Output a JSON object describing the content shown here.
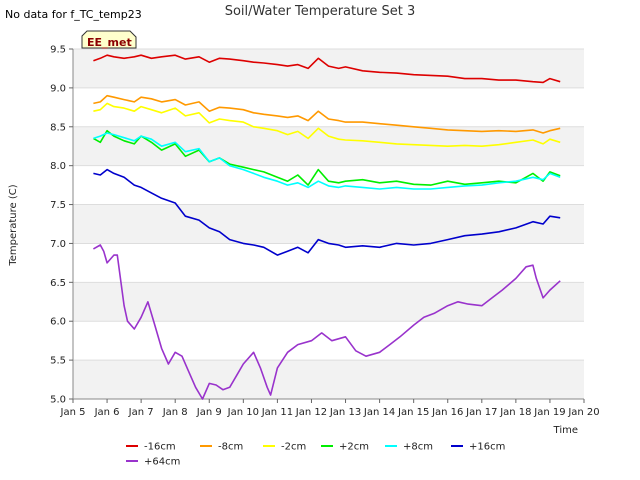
{
  "header": {
    "no_data_note": "No data for f_TC_temp23",
    "title": "Soil/Water Temperature Set 3"
  },
  "badge": {
    "label": "EE_met",
    "fill": "#ffffcc",
    "stroke": "#333333"
  },
  "chart_data": {
    "type": "line",
    "title": "Soil/Water Temperature Set 3",
    "xlabel": "Time",
    "ylabel": "Temperature (C)",
    "ylim": [
      5.0,
      9.5
    ],
    "yticks": [
      5.0,
      5.5,
      6.0,
      6.5,
      7.0,
      7.5,
      8.0,
      8.5,
      9.0,
      9.5
    ],
    "ytick_labels": [
      "5.0",
      "5.5",
      "6.0",
      "6.5",
      "7.0",
      "7.5",
      "8.0",
      "8.5",
      "9.0",
      "9.5"
    ],
    "xlim": [
      5,
      20
    ],
    "xticks": [
      5,
      6,
      7,
      8,
      9,
      10,
      11,
      12,
      13,
      14,
      15,
      16,
      17,
      18,
      19,
      20
    ],
    "xtick_labels": [
      "Jan 5",
      "Jan 6",
      "Jan 7",
      "Jan 8",
      "Jan 9",
      "Jan 10",
      "Jan 11",
      "Jan 12",
      "Jan 13",
      "Jan 14",
      "Jan 15",
      "Jan 16",
      "Jan 17",
      "Jan 18",
      "Jan 19",
      "Jan 20"
    ],
    "grid": "horizontal bands",
    "legend_position": "bottom",
    "series": [
      {
        "name": "-16cm",
        "color": "#dd0000",
        "x": [
          5.6,
          5.8,
          6.0,
          6.2,
          6.5,
          6.8,
          7.0,
          7.3,
          7.6,
          8.0,
          8.3,
          8.7,
          9.0,
          9.3,
          9.6,
          10.0,
          10.3,
          10.6,
          11.0,
          11.3,
          11.6,
          11.9,
          12.2,
          12.5,
          12.8,
          13.0,
          13.5,
          14.0,
          14.5,
          15.0,
          15.5,
          16.0,
          16.5,
          17.0,
          17.5,
          18.0,
          18.5,
          18.8,
          19.0,
          19.3
        ],
        "y": [
          9.35,
          9.38,
          9.42,
          9.4,
          9.38,
          9.4,
          9.42,
          9.38,
          9.4,
          9.42,
          9.37,
          9.4,
          9.33,
          9.38,
          9.37,
          9.35,
          9.33,
          9.32,
          9.3,
          9.28,
          9.3,
          9.25,
          9.38,
          9.28,
          9.25,
          9.27,
          9.22,
          9.2,
          9.19,
          9.17,
          9.16,
          9.15,
          9.12,
          9.12,
          9.1,
          9.1,
          9.08,
          9.07,
          9.12,
          9.08
        ]
      },
      {
        "name": "-8cm",
        "color": "#ff9900",
        "x": [
          5.6,
          5.8,
          6.0,
          6.2,
          6.5,
          6.8,
          7.0,
          7.3,
          7.6,
          8.0,
          8.3,
          8.7,
          9.0,
          9.3,
          9.6,
          10.0,
          10.3,
          10.6,
          11.0,
          11.3,
          11.6,
          11.9,
          12.2,
          12.5,
          12.8,
          13.0,
          13.5,
          14.0,
          14.5,
          15.0,
          15.5,
          16.0,
          16.5,
          17.0,
          17.5,
          18.0,
          18.5,
          18.8,
          19.0,
          19.3
        ],
        "y": [
          8.8,
          8.82,
          8.9,
          8.88,
          8.85,
          8.82,
          8.88,
          8.86,
          8.82,
          8.85,
          8.78,
          8.82,
          8.7,
          8.75,
          8.74,
          8.72,
          8.68,
          8.66,
          8.64,
          8.62,
          8.64,
          8.58,
          8.7,
          8.6,
          8.58,
          8.56,
          8.56,
          8.54,
          8.52,
          8.5,
          8.48,
          8.46,
          8.45,
          8.44,
          8.45,
          8.44,
          8.46,
          8.42,
          8.45,
          8.48
        ]
      },
      {
        "name": "-2cm",
        "color": "#ffff00",
        "x": [
          5.6,
          5.8,
          6.0,
          6.2,
          6.5,
          6.8,
          7.0,
          7.3,
          7.6,
          8.0,
          8.3,
          8.7,
          9.0,
          9.3,
          9.6,
          10.0,
          10.3,
          10.6,
          11.0,
          11.3,
          11.6,
          11.9,
          12.2,
          12.5,
          12.8,
          13.0,
          13.5,
          14.0,
          14.5,
          15.0,
          15.5,
          16.0,
          16.5,
          17.0,
          17.5,
          18.0,
          18.5,
          18.8,
          19.0,
          19.3
        ],
        "y": [
          8.7,
          8.72,
          8.8,
          8.76,
          8.74,
          8.7,
          8.76,
          8.72,
          8.68,
          8.74,
          8.64,
          8.68,
          8.55,
          8.6,
          8.58,
          8.56,
          8.5,
          8.48,
          8.45,
          8.4,
          8.44,
          8.35,
          8.48,
          8.38,
          8.34,
          8.33,
          8.32,
          8.3,
          8.28,
          8.27,
          8.26,
          8.25,
          8.26,
          8.25,
          8.27,
          8.3,
          8.33,
          8.28,
          8.34,
          8.3
        ]
      },
      {
        "name": "+2cm",
        "color": "#00ee00",
        "x": [
          5.6,
          5.8,
          6.0,
          6.2,
          6.5,
          6.8,
          7.0,
          7.3,
          7.6,
          8.0,
          8.3,
          8.7,
          9.0,
          9.3,
          9.6,
          10.0,
          10.3,
          10.6,
          11.0,
          11.3,
          11.6,
          11.9,
          12.2,
          12.5,
          12.8,
          13.0,
          13.5,
          14.0,
          14.5,
          15.0,
          15.5,
          16.0,
          16.5,
          17.0,
          17.5,
          18.0,
          18.5,
          18.8,
          19.0,
          19.3
        ],
        "y": [
          8.35,
          8.3,
          8.45,
          8.38,
          8.32,
          8.28,
          8.38,
          8.3,
          8.2,
          8.28,
          8.12,
          8.2,
          8.05,
          8.1,
          8.02,
          7.98,
          7.95,
          7.92,
          7.85,
          7.8,
          7.88,
          7.75,
          7.95,
          7.8,
          7.78,
          7.8,
          7.82,
          7.78,
          7.8,
          7.76,
          7.75,
          7.8,
          7.76,
          7.78,
          7.8,
          7.78,
          7.9,
          7.8,
          7.92,
          7.87
        ]
      },
      {
        "name": "+8cm",
        "color": "#00ffff",
        "x": [
          5.6,
          5.8,
          6.0,
          6.2,
          6.5,
          6.8,
          7.0,
          7.3,
          7.6,
          8.0,
          8.3,
          8.7,
          9.0,
          9.3,
          9.6,
          10.0,
          10.3,
          10.6,
          11.0,
          11.3,
          11.6,
          11.9,
          12.2,
          12.5,
          12.8,
          13.0,
          13.5,
          14.0,
          14.5,
          15.0,
          15.5,
          16.0,
          16.5,
          17.0,
          17.5,
          18.0,
          18.5,
          18.8,
          19.0,
          19.3
        ],
        "y": [
          8.35,
          8.38,
          8.42,
          8.4,
          8.36,
          8.32,
          8.38,
          8.34,
          8.25,
          8.3,
          8.18,
          8.22,
          8.05,
          8.1,
          8.0,
          7.95,
          7.9,
          7.85,
          7.8,
          7.75,
          7.78,
          7.72,
          7.8,
          7.74,
          7.72,
          7.74,
          7.72,
          7.7,
          7.72,
          7.7,
          7.7,
          7.72,
          7.74,
          7.75,
          7.78,
          7.8,
          7.85,
          7.82,
          7.9,
          7.85
        ]
      },
      {
        "name": "+16cm",
        "color": "#0000cc",
        "x": [
          5.6,
          5.8,
          6.0,
          6.2,
          6.5,
          6.8,
          7.0,
          7.3,
          7.6,
          8.0,
          8.3,
          8.7,
          9.0,
          9.3,
          9.6,
          10.0,
          10.3,
          10.6,
          11.0,
          11.3,
          11.6,
          11.9,
          12.2,
          12.5,
          12.8,
          13.0,
          13.5,
          14.0,
          14.5,
          15.0,
          15.5,
          16.0,
          16.5,
          17.0,
          17.5,
          18.0,
          18.5,
          18.8,
          19.0,
          19.3
        ],
        "y": [
          7.9,
          7.88,
          7.95,
          7.9,
          7.85,
          7.75,
          7.72,
          7.65,
          7.58,
          7.52,
          7.35,
          7.3,
          7.2,
          7.15,
          7.05,
          7.0,
          6.98,
          6.95,
          6.85,
          6.9,
          6.95,
          6.88,
          7.05,
          7.0,
          6.98,
          6.95,
          6.97,
          6.95,
          7.0,
          6.98,
          7.0,
          7.05,
          7.1,
          7.12,
          7.15,
          7.2,
          7.28,
          7.25,
          7.35,
          7.33
        ]
      },
      {
        "name": "+64cm",
        "color": "#9933cc",
        "x": [
          5.6,
          5.8,
          5.9,
          6.0,
          6.2,
          6.3,
          6.5,
          6.6,
          6.8,
          7.0,
          7.2,
          7.4,
          7.6,
          7.8,
          8.0,
          8.2,
          8.4,
          8.6,
          8.8,
          9.0,
          9.2,
          9.4,
          9.6,
          9.8,
          10.0,
          10.3,
          10.5,
          10.7,
          10.8,
          11.0,
          11.3,
          11.6,
          12.0,
          12.3,
          12.6,
          13.0,
          13.3,
          13.6,
          14.0,
          14.3,
          14.6,
          15.0,
          15.3,
          15.6,
          16.0,
          16.3,
          16.6,
          17.0,
          17.3,
          17.6,
          18.0,
          18.3,
          18.5,
          18.6,
          18.8,
          19.0,
          19.3
        ],
        "y": [
          6.93,
          6.98,
          6.9,
          6.75,
          6.85,
          6.85,
          6.2,
          6.0,
          5.9,
          6.05,
          6.25,
          5.95,
          5.65,
          5.45,
          5.6,
          5.55,
          5.35,
          5.15,
          5.0,
          5.2,
          5.18,
          5.12,
          5.15,
          5.3,
          5.45,
          5.6,
          5.4,
          5.15,
          5.05,
          5.4,
          5.6,
          5.7,
          5.75,
          5.85,
          5.75,
          5.8,
          5.62,
          5.55,
          5.6,
          5.7,
          5.8,
          5.95,
          6.05,
          6.1,
          6.2,
          6.25,
          6.22,
          6.2,
          6.3,
          6.4,
          6.55,
          6.7,
          6.72,
          6.55,
          6.3,
          6.4,
          6.52
        ]
      }
    ]
  }
}
